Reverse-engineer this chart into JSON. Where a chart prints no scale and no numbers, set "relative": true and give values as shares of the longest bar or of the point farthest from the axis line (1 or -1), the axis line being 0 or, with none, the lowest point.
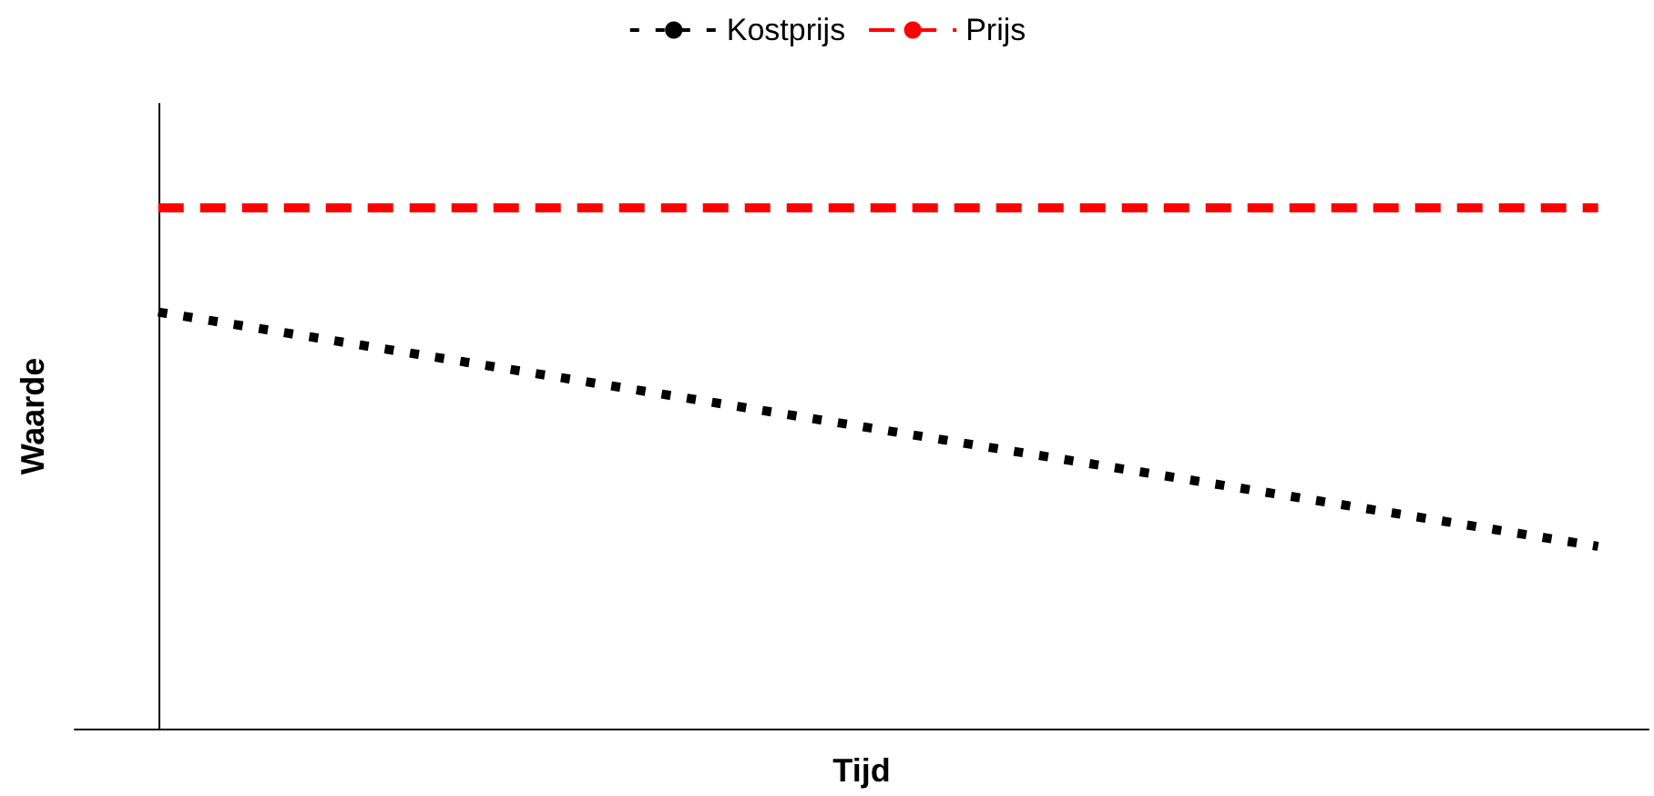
{
  "chart_data": {
    "type": "line",
    "xlabel": "Tijd",
    "ylabel": "Waarde",
    "relative": true,
    "categories": [
      null,
      null
    ],
    "legend": "top",
    "grid": false,
    "marker": "none",
    "series": [
      {
        "name": "Kostprijs",
        "color": "#000000",
        "line_style": "dotted",
        "values": [
          0.8,
          0.35
        ]
      },
      {
        "name": "Prijs",
        "color": "#ff0000",
        "line_style": "dashed",
        "values": [
          1,
          1
        ]
      }
    ]
  }
}
